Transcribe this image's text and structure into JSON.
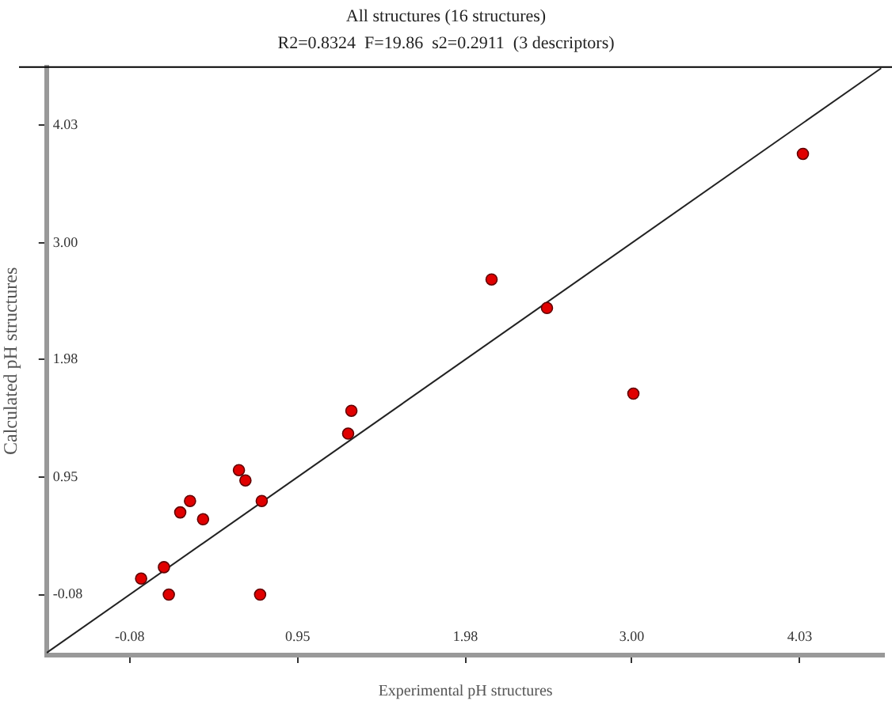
{
  "chart_data": {
    "type": "scatter",
    "title": "All structures (16 structures)",
    "subtitle": "R2=0.8324  F=19.86  s2=0.2911  (3 descriptors)",
    "xlabel": "Experimental pH structures",
    "ylabel": "Calculated pH structures",
    "xlim": [
      -0.59,
      4.55
    ],
    "ylim": [
      -0.61,
      4.54
    ],
    "xticks": [
      -0.08,
      0.95,
      1.98,
      {
        "value": 3,
        "label": "3.00"
      },
      4.03
    ],
    "yticks": [
      -0.08,
      0.95,
      1.98,
      {
        "value": 3,
        "label": "3.00"
      },
      4.03
    ],
    "grid": false,
    "legend": false,
    "series": [
      {
        "type": "scatter",
        "marker": "circle",
        "color": "#e00000",
        "x": [
          -0.01,
          0.13,
          0.16,
          0.23,
          0.29,
          0.37,
          0.59,
          0.63,
          0.73,
          0.72,
          1.26,
          1.28,
          2.14,
          2.48,
          4.05,
          3.01
        ],
        "values": [
          0.06,
          0.16,
          -0.08,
          0.64,
          0.74,
          0.58,
          1.01,
          0.92,
          0.74,
          -0.08,
          1.33,
          1.53,
          2.68,
          2.43,
          3.78,
          1.68
        ]
      },
      {
        "type": "line",
        "marker": "none",
        "color": "#222222",
        "x": [
          -0.59,
          4.53
        ],
        "values": [
          -0.59,
          4.53
        ]
      }
    ]
  }
}
